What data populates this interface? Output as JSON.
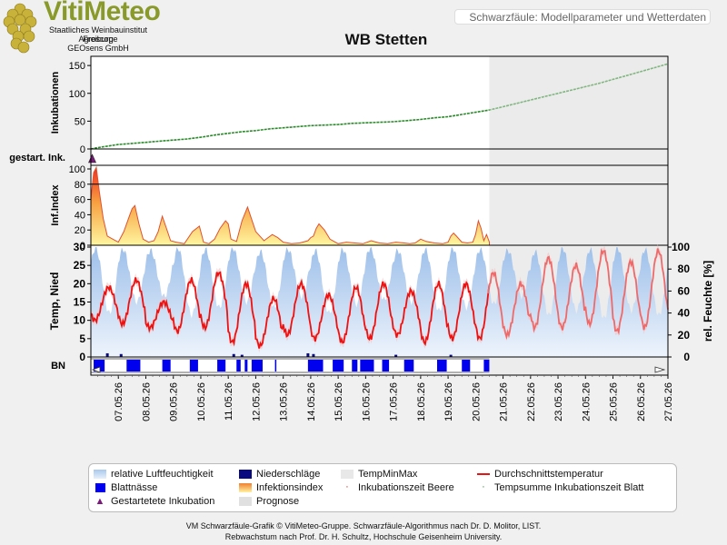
{
  "header": {
    "logo_text": "VitiMeteo",
    "org_lines": [
      "Staatliches Weinbauinstitut Freiburg",
      "Agroscope",
      "GEOsens GmbH"
    ],
    "subtitle_box": "Schwarzfäule: Modellparameter und Wetterdaten"
  },
  "legend": {
    "items": [
      {
        "label": "relative Luftfeuchtigkeit",
        "color": "#a9c8ec"
      },
      {
        "label": "Niederschläge",
        "color": "#0a0a80"
      },
      {
        "label": "TempMinMax",
        "color": "#e8e8e8"
      },
      {
        "label": "Durchschnittstemperatur",
        "color": "#ee1111"
      },
      {
        "label": "Blattnässe",
        "color": "#0000ee"
      },
      {
        "label": "Infektionsindex",
        "color": "#f4c050"
      },
      {
        "label": "Inkubationszeit Beere",
        "color": "#ee1111"
      },
      {
        "label": "Tempsumme Inkubationszeit Blatt",
        "color": "#2a8a2a"
      },
      {
        "label": "Gestartetete Inkubation",
        "color": "#7a1a7a"
      },
      {
        "label": "Prognose",
        "color": "#e0e0e0"
      }
    ]
  },
  "footer": {
    "line1": "VM Schwarzfäule-Grafik © VitiMeteo-Gruppe. Schwarzfäule-Algorithmus nach Dr. D. Molitor, LIST.",
    "line2": "Rebwachstum nach Prof. Dr. H. Schultz, Hochschule Geisenheim University."
  },
  "chart_data": {
    "type": "line",
    "title": "WB Stetten",
    "x_dates": [
      "07.05.26",
      "08.05.26",
      "09.05.26",
      "10.05.26",
      "11.05.26",
      "12.05.26",
      "13.05.26",
      "14.05.26",
      "15.05.26",
      "16.05.26",
      "17.05.26",
      "18.05.26",
      "19.05.26",
      "20.05.26",
      "21.05.26",
      "22.05.26",
      "23.05.26",
      "24.05.26",
      "25.05.26",
      "26.05.26",
      "27.05.26"
    ],
    "forecast_start_date": "20.05.26",
    "colors": {
      "forecast": "#ececec",
      "green": "#2a8a2a",
      "red": "#ee1111",
      "humidity": "#a9c8ec",
      "leaf_wet": "#0000ee",
      "rain": "#0a0a80"
    },
    "panels": [
      {
        "name": "inkubationen",
        "ylabel": "Inkubationen",
        "ylim": [
          0,
          160
        ],
        "yticks": [
          0,
          50,
          100,
          150
        ],
        "series": [
          {
            "name": "Tempsumme Inkubationszeit Blatt",
            "x": [
              6.0,
              6.2,
              6.6,
              7.0,
              7.5,
              8.0,
              8.5,
              9.0,
              9.5,
              10.0,
              10.5,
              11.0,
              11.5,
              12.0,
              12.5,
              13.0,
              13.5,
              14.0,
              14.5,
              15.0,
              15.5,
              16.0,
              16.5,
              17.0,
              17.5,
              18.0,
              18.5,
              19.0,
              19.5,
              20.0,
              20.5,
              21.0,
              21.5,
              22.0,
              22.5,
              23.0,
              23.5,
              24.0,
              24.5,
              25.0,
              25.5,
              26.0,
              26.5,
              27.0
            ],
            "y": [
              0,
              2,
              5,
              8,
              10,
              12,
              14,
              16,
              18,
              21,
              25,
              28,
              31,
              33,
              36,
              38,
              40,
              42,
              43,
              44,
              46,
              47,
              48,
              49,
              51,
              53,
              56,
              58,
              62,
              66,
              70,
              76,
              82,
              88,
              94,
              100,
              106,
              112,
              118,
              125,
              132,
              139,
              146,
              153
            ]
          }
        ]
      },
      {
        "name": "gestartete-inkubationen",
        "ylabel": "gestart. Ink.",
        "markers": [
          {
            "x": 6.05
          }
        ]
      },
      {
        "name": "infektionsindex",
        "ylabel": "Inf.Index",
        "ylim": [
          0,
          100
        ],
        "yticks": [
          0,
          20,
          40,
          60,
          80,
          100
        ],
        "threshold": 80,
        "series": [
          {
            "name": "Infektionsindex",
            "x": [
              6.0,
              6.1,
              6.2,
              6.3,
              6.45,
              6.6,
              6.8,
              7.0,
              7.2,
              7.4,
              7.5,
              7.6,
              7.75,
              7.9,
              8.1,
              8.3,
              8.45,
              8.6,
              8.75,
              8.9,
              9.1,
              9.4,
              9.7,
              9.95,
              10.1,
              10.3,
              10.5,
              10.7,
              10.9,
              11.0,
              11.1,
              11.3,
              11.5,
              11.7,
              12.0,
              12.3,
              12.6,
              12.8,
              13.0,
              13.3,
              13.6,
              13.9,
              14.0,
              14.1,
              14.2,
              14.3,
              14.5,
              14.7,
              15.0,
              15.3,
              15.6,
              15.9,
              16.2,
              16.5,
              16.8,
              17.1,
              17.4,
              17.6,
              17.8,
              18.0,
              18.2,
              18.5,
              18.8,
              19.0,
              19.1,
              19.2,
              19.3,
              19.5,
              19.7,
              19.9,
              20.0,
              20.1,
              20.2,
              20.3,
              20.4,
              20.5
            ],
            "y": [
              60,
              95,
              102,
              72,
              35,
              12,
              8,
              4,
              18,
              38,
              48,
              52,
              28,
              8,
              4,
              6,
              18,
              38,
              22,
              6,
              4,
              2,
              18,
              25,
              4,
              2,
              8,
              22,
              32,
              28,
              8,
              5,
              32,
              50,
              18,
              6,
              14,
              10,
              4,
              2,
              3,
              6,
              10,
              12,
              22,
              28,
              20,
              8,
              2,
              4,
              3,
              2,
              6,
              3,
              2,
              4,
              3,
              2,
              3,
              8,
              5,
              3,
              2,
              4,
              12,
              16,
              12,
              4,
              3,
              4,
              14,
              32,
              22,
              6,
              14,
              4
            ]
          }
        ]
      },
      {
        "name": "wetter",
        "ylabel": "Temp, Nied",
        "y2label": "rel. Feuchte [%]",
        "ylim": [
          0,
          30
        ],
        "yticks": [
          0,
          5,
          10,
          15,
          20,
          25,
          30
        ],
        "y2lim": [
          0,
          100
        ],
        "y2ticks": [
          0,
          20,
          40,
          60,
          80,
          100
        ],
        "temperature_daily_min": [
          10,
          9,
          8,
          7,
          8,
          4,
          3,
          6,
          5,
          4,
          5,
          6,
          4,
          5,
          5,
          6,
          8,
          8,
          9,
          7,
          8,
          9
        ],
        "temperature_daily_max": [
          19,
          21,
          15,
          21,
          23,
          20,
          16,
          20,
          17,
          19,
          20,
          18,
          20,
          20,
          23,
          20,
          27,
          25,
          29,
          26,
          29,
          28
        ],
        "humidity_daily_min": [
          40,
          50,
          55,
          38,
          45,
          50,
          45,
          55,
          40,
          48,
          52,
          50,
          42,
          45,
          48,
          55,
          38,
          42,
          35,
          42,
          38,
          40
        ],
        "humidity_daily_max": [
          99,
          98,
          97,
          99,
          98,
          99,
          96,
          98,
          97,
          98,
          99,
          97,
          98,
          99,
          98,
          97,
          96,
          99,
          98,
          99,
          98,
          97
        ],
        "rain_events": [
          {
            "x": 6.6,
            "y": 1
          },
          {
            "x": 7.1,
            "y": 0.8
          },
          {
            "x": 11.2,
            "y": 0.8
          },
          {
            "x": 11.5,
            "y": 0.6
          },
          {
            "x": 13.9,
            "y": 1
          },
          {
            "x": 14.1,
            "y": 0.8
          },
          {
            "x": 17.1,
            "y": 0.6
          },
          {
            "x": 19.1,
            "y": 0.6
          }
        ]
      },
      {
        "name": "blattnaesse",
        "ylabel": "BN",
        "wet_intervals": [
          [
            6.1,
            6.5
          ],
          [
            7.3,
            7.8
          ],
          [
            8.6,
            8.9
          ],
          [
            9.6,
            9.9
          ],
          [
            10.6,
            10.9
          ],
          [
            11.3,
            11.45
          ],
          [
            11.6,
            11.7
          ],
          [
            11.85,
            12.25
          ],
          [
            12.7,
            12.75
          ],
          [
            13.9,
            14.45
          ],
          [
            14.8,
            15.2
          ],
          [
            15.5,
            15.7
          ],
          [
            15.8,
            16.3
          ],
          [
            16.6,
            16.85
          ],
          [
            17.4,
            17.75
          ],
          [
            18.6,
            18.95
          ],
          [
            19.5,
            19.8
          ],
          [
            20.3,
            20.5
          ]
        ]
      }
    ]
  }
}
